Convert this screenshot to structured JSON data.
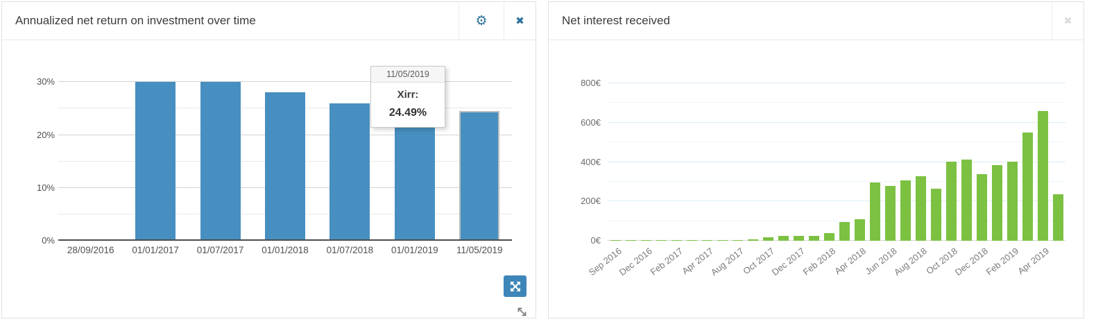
{
  "page": {
    "background": "#ffffff"
  },
  "left_panel": {
    "title": "Annualized net return on investment over time",
    "icons": {
      "gear": "⚙",
      "close": "✖"
    },
    "tooltip": {
      "date": "11/05/2019",
      "label": "Xirr:",
      "value": "24.49%"
    }
  },
  "right_panel": {
    "title": "Net interest received",
    "icons": {
      "close": "✖"
    }
  },
  "colors": {
    "blue_bar": "#478fc0",
    "green_bar": "#7cc142",
    "icon_blue": "#2e719f",
    "gray_close": "#dedede",
    "expand_button_bg": "#3e86b9",
    "left_grid_major": "#d2d2d2",
    "left_grid_minor": "#e9e9e9",
    "left_axis_line": "#4d4d4d",
    "right_grid_major": "#dcedf5",
    "right_grid_minor": "#ebf5fa",
    "right_axis_line": "#d9d9d9"
  },
  "chart_data": [
    {
      "type": "bar",
      "title": "Annualized net return on investment over time",
      "categories": [
        "28/09/2016",
        "01/01/2017",
        "01/07/2017",
        "01/01/2018",
        "01/07/2018",
        "01/01/2019",
        "11/05/2019"
      ],
      "values": [
        0.25,
        30,
        30,
        28,
        26,
        22.6,
        24.49
      ],
      "series_name": "Xirr",
      "y_ticks": [
        {
          "value": 0,
          "label": "0%"
        },
        {
          "value": 10,
          "label": "10%"
        },
        {
          "value": 20,
          "label": "20%"
        },
        {
          "value": 30,
          "label": "30%"
        }
      ],
      "grid_minor": [
        5,
        15,
        25
      ],
      "grid_major": [
        10,
        20,
        30
      ],
      "ylim": [
        0,
        32
      ],
      "bar_color": "#478fc0",
      "highlight_index": 6,
      "tooltip": {
        "date": "11/05/2019",
        "label": "Xirr:",
        "value": "24.49%"
      },
      "grid": "horizontal",
      "legend": "none"
    },
    {
      "type": "bar",
      "title": "Net interest received",
      "n_bars": 30,
      "values": [
        1,
        1,
        1,
        1,
        1,
        2,
        2,
        2,
        3,
        8,
        18,
        26,
        23,
        23,
        38,
        95,
        110,
        295,
        280,
        308,
        328,
        263,
        400,
        413,
        340,
        385,
        400,
        550,
        660,
        235
      ],
      "x_tick_labels": [
        "Sep 2016",
        "Dec 2016",
        "Feb 2017",
        "Apr 2017",
        "Aug 2017",
        "Oct 2017",
        "Dec 2017",
        "Feb 2018",
        "Apr 2018",
        "Jun 2018",
        "Aug 2018",
        "Oct 2018",
        "Dec 2018",
        "Feb 2019",
        "Apr 2019"
      ],
      "tick_every": 2,
      "y_ticks": [
        {
          "value": 0,
          "label": "0€"
        },
        {
          "value": 200,
          "label": "200€"
        },
        {
          "value": 400,
          "label": "400€"
        },
        {
          "value": 600,
          "label": "600€"
        },
        {
          "value": 800,
          "label": "800€"
        }
      ],
      "grid_minor": [
        100,
        300,
        500,
        700
      ],
      "grid_major": [
        200,
        400,
        600,
        800
      ],
      "ylim": [
        0,
        800
      ],
      "bar_color": "#7cc142",
      "unit": "€",
      "grid": "horizontal",
      "legend": "none"
    }
  ]
}
